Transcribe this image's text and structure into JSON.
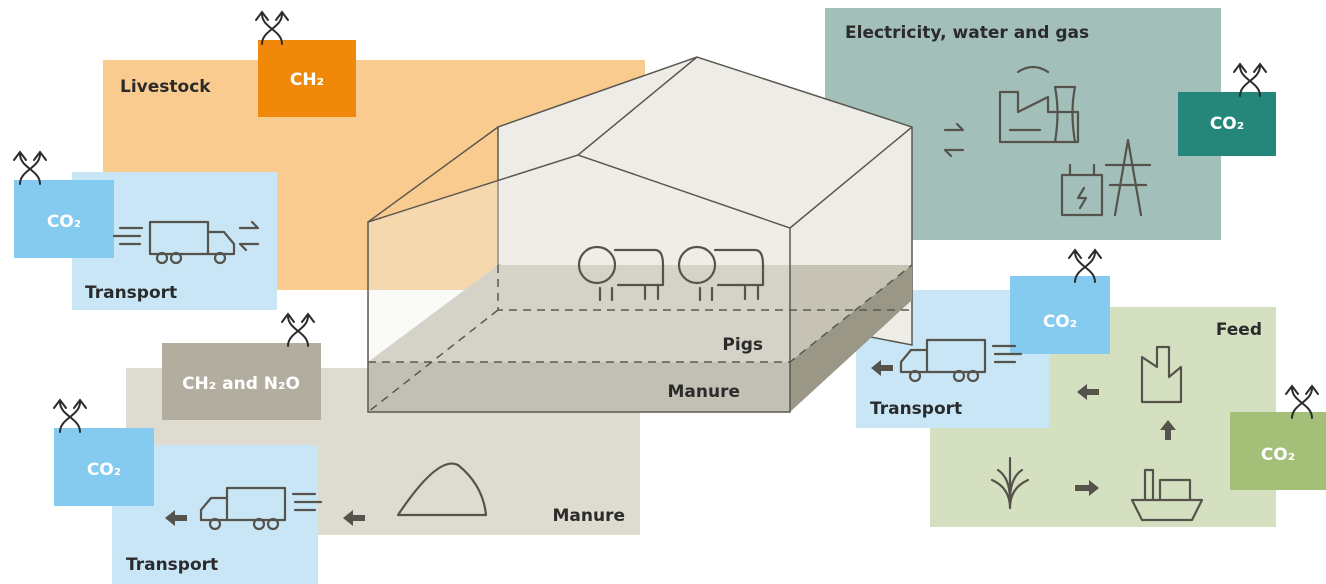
{
  "livestock": {
    "label": "Livestock",
    "emission": "CH₂"
  },
  "transport_livestock": {
    "label": "Transport",
    "emission": "CO₂"
  },
  "utilities": {
    "label": "Electricity, water and gas",
    "emission": "CO₂"
  },
  "barn": {
    "pigs": "Pigs",
    "manure": "Manure"
  },
  "manure": {
    "label": "Manure",
    "emission": "CH₂ and N₂O"
  },
  "transport_manure": {
    "label": "Transport",
    "emission": "CO₂"
  },
  "feed": {
    "label": "Feed",
    "emission": "CO₂"
  },
  "transport_feed": {
    "label": "Transport",
    "emission": "CO₂"
  }
}
